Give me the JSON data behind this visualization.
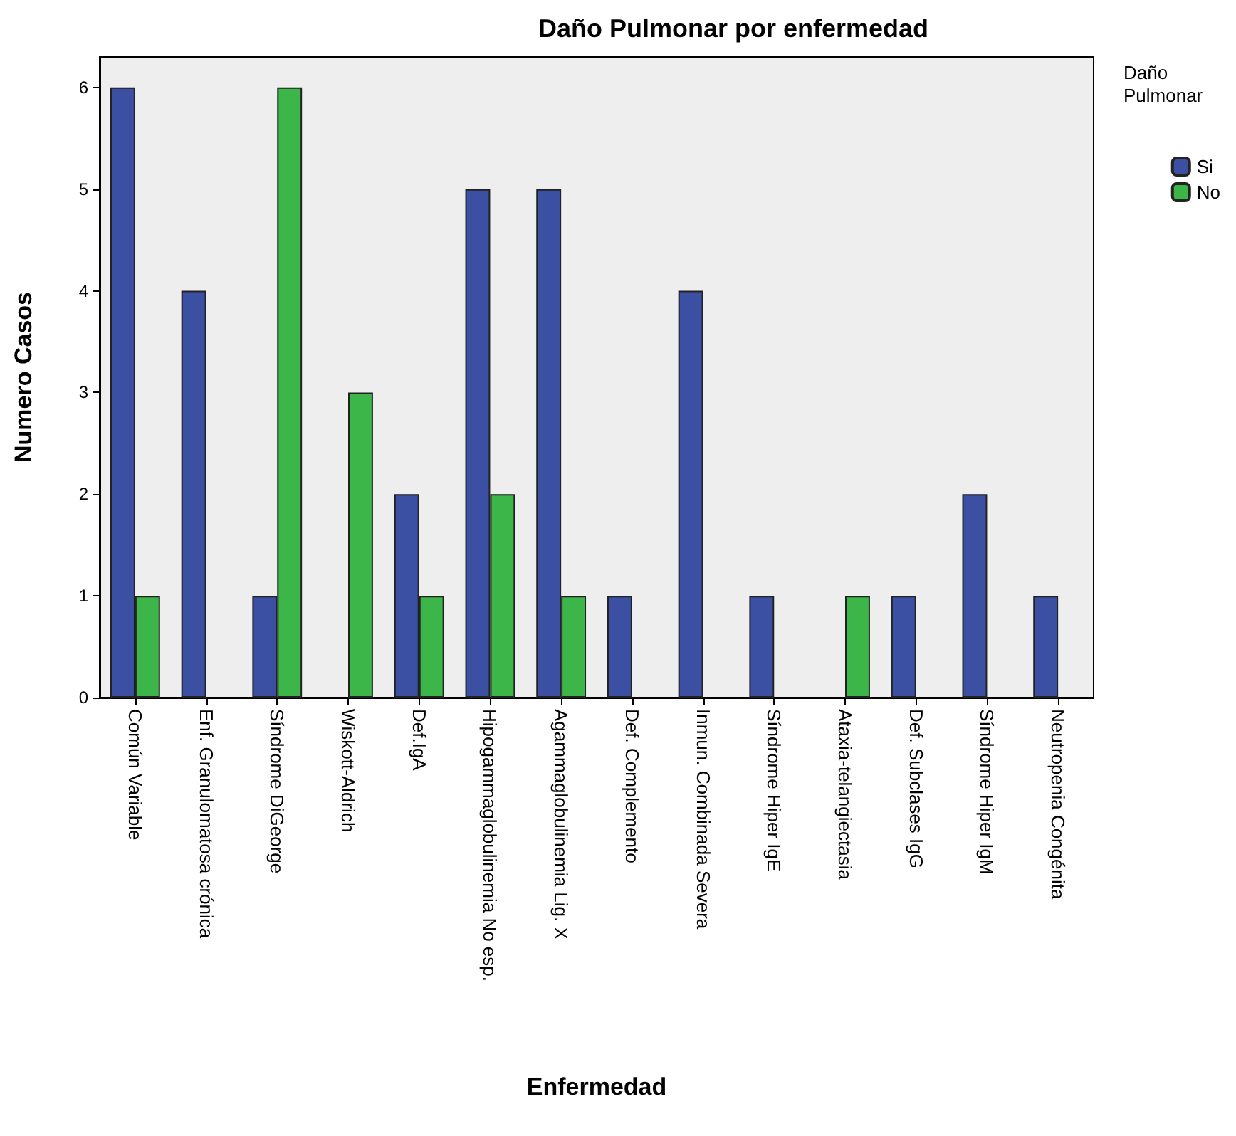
{
  "chart_data": {
    "type": "bar",
    "title": "Daño Pulmonar por enfermedad",
    "xlabel": "Enfermedad",
    "ylabel": "Numero Casos",
    "legend_title": "Daño\nPulmonar",
    "categories": [
      "Común Variable",
      "Enf. Granulomatosa crónica",
      "Síndrome DiGeorge",
      "Wiskott-Aldrich",
      "Def.IgA",
      "Hipogammaglobulinemia No esp.",
      "Agammaglobulinemia Lig. X",
      "Def. Complemento",
      "Inmun. Combinada Severa",
      "Síndrome Hiper IgE",
      "Ataxia-telangiectasia",
      "Def. Subclases IgG",
      "Síndrome Hiper IgM",
      "Neutropenia Congénita"
    ],
    "series": [
      {
        "name": "Si",
        "color": "#3b4fa3",
        "values": [
          6,
          4,
          1,
          0,
          2,
          5,
          5,
          1,
          4,
          1,
          0,
          1,
          2,
          1
        ]
      },
      {
        "name": "No",
        "color": "#3cb649",
        "values": [
          1,
          0,
          6,
          3,
          1,
          2,
          1,
          0,
          0,
          0,
          1,
          0,
          0,
          0
        ]
      }
    ],
    "ylim": [
      0,
      6.3
    ],
    "yticks": [
      0,
      1,
      2,
      3,
      4,
      5,
      6
    ],
    "grid": false,
    "legend": "top right"
  }
}
